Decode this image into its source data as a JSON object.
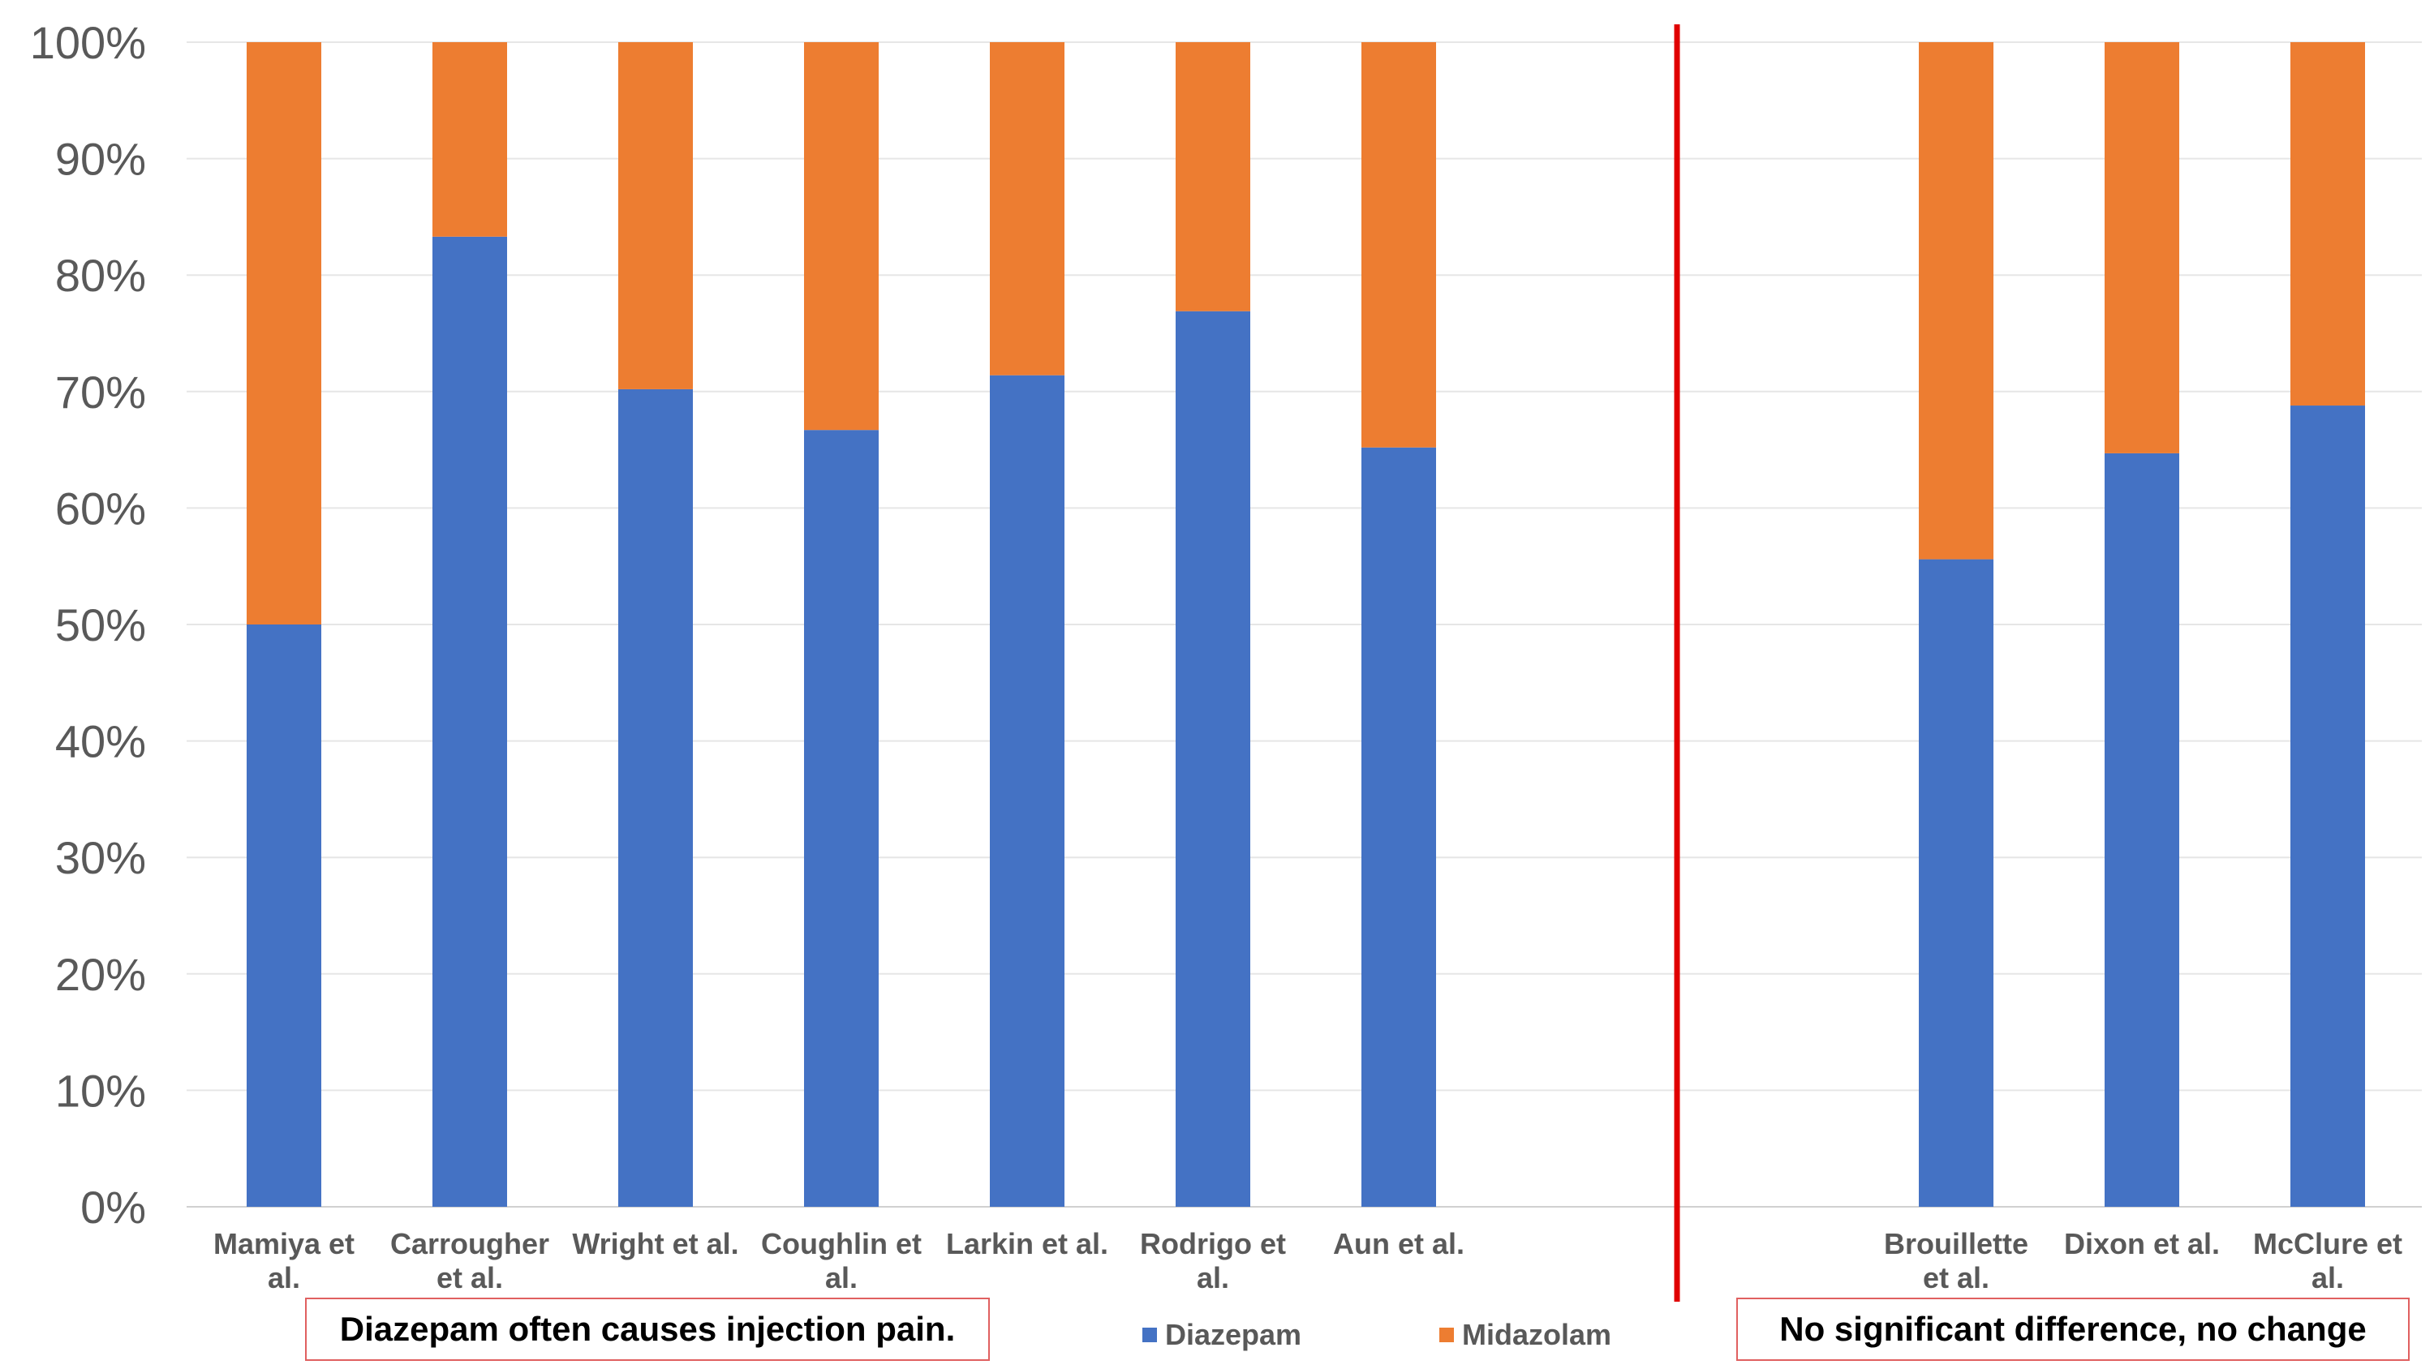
{
  "chart_data": {
    "type": "bar",
    "stacked": true,
    "percent_axis": true,
    "categories": [
      [
        "Mamiya et",
        "al."
      ],
      [
        "Carrougher",
        "et al."
      ],
      [
        "Wright et al."
      ],
      [
        "Coughlin et",
        "al."
      ],
      [
        "Larkin et al."
      ],
      [
        "Rodrigo et",
        "al."
      ],
      [
        "Aun et al."
      ],
      [],
      [],
      [
        "Brouillette",
        "et al."
      ],
      [
        "Dixon et al."
      ],
      [
        "McClure et",
        "al."
      ]
    ],
    "series": [
      {
        "name": "Diazepam",
        "color": "#4472c4",
        "values": [
          50,
          83.3,
          70.2,
          66.7,
          71.4,
          76.9,
          65.2,
          null,
          null,
          55.6,
          64.7,
          68.8
        ]
      },
      {
        "name": "Midazolam",
        "color": "#ed7d31",
        "values": [
          50,
          16.7,
          29.8,
          33.3,
          28.6,
          23.1,
          34.8,
          null,
          null,
          44.4,
          35.3,
          31.2
        ]
      }
    ],
    "y_ticks": [
      "0%",
      "10%",
      "20%",
      "30%",
      "40%",
      "50%",
      "60%",
      "70%",
      "80%",
      "90%",
      "100%"
    ],
    "ylim": [
      0,
      100
    ],
    "grid": true,
    "divider_color": "#e00000",
    "annotations": {
      "left": "Diazepam often causes injection pain.",
      "right": "No significant difference, no change"
    },
    "annotation_border_color": "#e06060",
    "legend": {
      "position": "bottom",
      "entries": [
        "Diazepam",
        "Midazolam"
      ]
    }
  }
}
